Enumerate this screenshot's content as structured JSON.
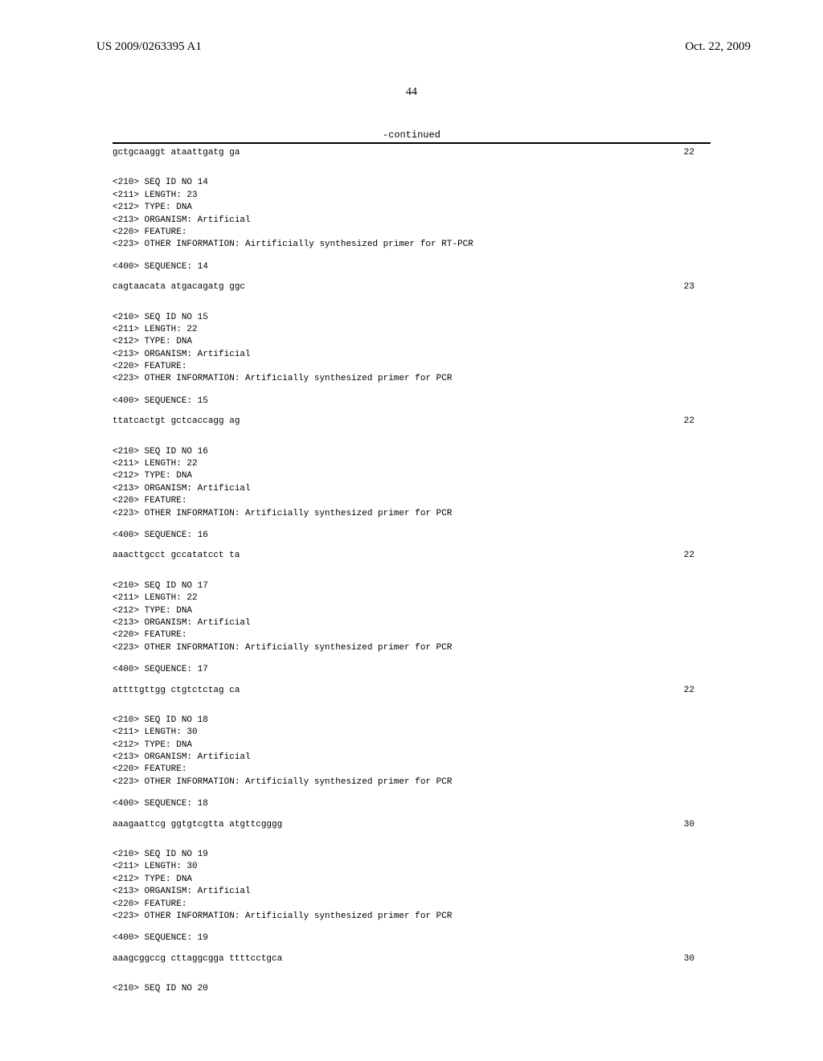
{
  "header": {
    "pub_number": "US 2009/0263395 A1",
    "pub_date": "Oct. 22, 2009"
  },
  "page_number": "44",
  "continued_label": "-continued",
  "sequences": [
    {
      "sequence": "gctgcaaggt ataattgatg ga",
      "length_num": "22"
    },
    {
      "header_lines": [
        "<210> SEQ ID NO 14",
        "<211> LENGTH: 23",
        "<212> TYPE: DNA",
        "<213> ORGANISM: Artificial",
        "<220> FEATURE:",
        "<223> OTHER INFORMATION: Airtificially synthesized primer for RT-PCR"
      ],
      "seq_label": "<400> SEQUENCE: 14",
      "sequence": "cagtaacata atgacagatg ggc",
      "length_num": "23"
    },
    {
      "header_lines": [
        "<210> SEQ ID NO 15",
        "<211> LENGTH: 22",
        "<212> TYPE: DNA",
        "<213> ORGANISM: Artificial",
        "<220> FEATURE:",
        "<223> OTHER INFORMATION: Artificially synthesized primer for PCR"
      ],
      "seq_label": "<400> SEQUENCE: 15",
      "sequence": "ttatcactgt gctcaccagg ag",
      "length_num": "22"
    },
    {
      "header_lines": [
        "<210> SEQ ID NO 16",
        "<211> LENGTH: 22",
        "<212> TYPE: DNA",
        "<213> ORGANISM: Artificial",
        "<220> FEATURE:",
        "<223> OTHER INFORMATION: Artificially synthesized primer for PCR"
      ],
      "seq_label": "<400> SEQUENCE: 16",
      "sequence": "aaacttgcct gccatatcct ta",
      "length_num": "22"
    },
    {
      "header_lines": [
        "<210> SEQ ID NO 17",
        "<211> LENGTH: 22",
        "<212> TYPE: DNA",
        "<213> ORGANISM: Artificial",
        "<220> FEATURE:",
        "<223> OTHER INFORMATION: Artificially synthesized primer for PCR"
      ],
      "seq_label": "<400> SEQUENCE: 17",
      "sequence": "attttgttgg ctgtctctag ca",
      "length_num": "22"
    },
    {
      "header_lines": [
        "<210> SEQ ID NO 18",
        "<211> LENGTH: 30",
        "<212> TYPE: DNA",
        "<213> ORGANISM: Artificial",
        "<220> FEATURE:",
        "<223> OTHER INFORMATION: Artificially synthesized primer for PCR"
      ],
      "seq_label": "<400> SEQUENCE: 18",
      "sequence": "aaagaattcg ggtgtcgtta atgttcgggg",
      "length_num": "30"
    },
    {
      "header_lines": [
        "<210> SEQ ID NO 19",
        "<211> LENGTH: 30",
        "<212> TYPE: DNA",
        "<213> ORGANISM: Artificial",
        "<220> FEATURE:",
        "<223> OTHER INFORMATION: Artificially synthesized primer for PCR"
      ],
      "seq_label": "<400> SEQUENCE: 19",
      "sequence": "aaagcggccg cttaggcgga ttttcctgca",
      "length_num": "30"
    },
    {
      "header_lines": [
        "<210> SEQ ID NO 20"
      ]
    }
  ]
}
